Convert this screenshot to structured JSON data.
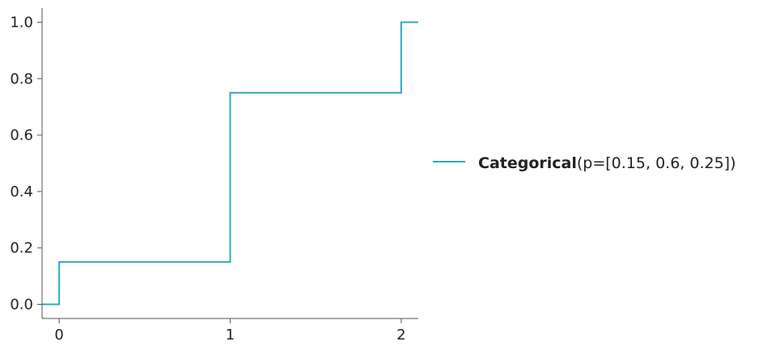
{
  "chart_data": {
    "type": "line",
    "step": "post",
    "x": [
      -0.1,
      0,
      1,
      2,
      2.1
    ],
    "y": [
      0.0,
      0.15,
      0.75,
      1.0,
      1.0
    ],
    "xlim": [
      -0.1,
      2.1
    ],
    "ylim": [
      -0.05,
      1.05
    ],
    "xticks": [
      0,
      1,
      2
    ],
    "xtick_labels": [
      "0",
      "1",
      "2"
    ],
    "yticks": [
      0.0,
      0.2,
      0.4,
      0.6,
      0.8,
      1.0
    ],
    "ytick_labels": [
      "0.0",
      "0.2",
      "0.4",
      "0.6",
      "0.8",
      "1.0"
    ],
    "grid": false,
    "legend_position": "right",
    "series": [
      {
        "name_bold": "Categorical",
        "name_params": "(p=[0.15, 0.6, 0.25])",
        "color": "#2ca9c1"
      }
    ],
    "axis_color": "#555555"
  }
}
